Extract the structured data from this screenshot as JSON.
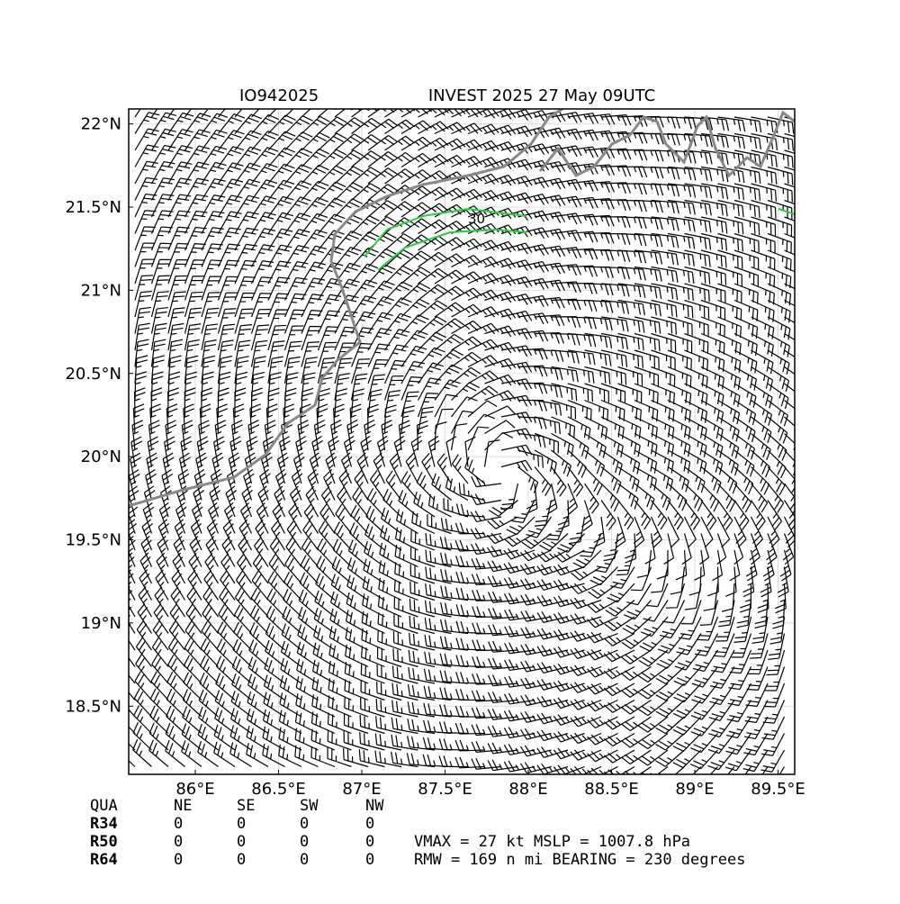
{
  "header": {
    "id": "IO942025",
    "title": "INVEST 2025 27 May 09UTC"
  },
  "map": {
    "contour_label": "30",
    "xlim": [
      85.6,
      89.6
    ],
    "ylim": [
      18.09,
      22.09
    ],
    "xticks": [
      {
        "value": 86,
        "label": "86°E"
      },
      {
        "value": 86.5,
        "label": "86.5°E"
      },
      {
        "value": 87,
        "label": "87°E"
      },
      {
        "value": 87.5,
        "label": "87.5°E"
      },
      {
        "value": 88,
        "label": "88°E"
      },
      {
        "value": 88.5,
        "label": "88.5°E"
      },
      {
        "value": 89,
        "label": "89°E"
      },
      {
        "value": 89.5,
        "label": "89.5°E"
      }
    ],
    "yticks": [
      {
        "value": 18.5,
        "label": "18.5°N"
      },
      {
        "value": 19,
        "label": "19°N"
      },
      {
        "value": 19.5,
        "label": "19.5°N"
      },
      {
        "value": 20,
        "label": "20°N"
      },
      {
        "value": 20.5,
        "label": "20.5°N"
      },
      {
        "value": 21,
        "label": "21°N"
      },
      {
        "value": 21.5,
        "label": "21.5°N"
      },
      {
        "value": 22,
        "label": "22°N"
      }
    ]
  },
  "table": {
    "header": [
      "QUA",
      "NE",
      "SE",
      "SW",
      "NW"
    ],
    "rows": [
      [
        "R34",
        "0",
        "0",
        "0",
        "0"
      ],
      [
        "R50",
        "0",
        "0",
        "0",
        "0"
      ],
      [
        "R64",
        "0",
        "0",
        "0",
        "0"
      ]
    ]
  },
  "summary": [
    "VMAX =  27 kt MSLP = 1007.8 hPa",
    "RMW = 169 n mi BEARING = 230 degrees"
  ]
}
